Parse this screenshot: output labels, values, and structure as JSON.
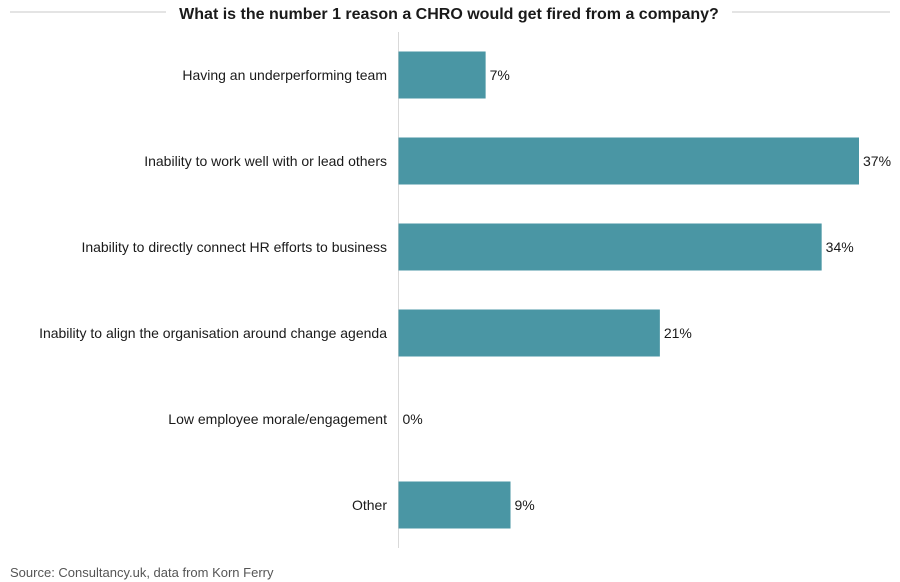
{
  "chart_data": {
    "type": "bar",
    "orientation": "horizontal",
    "title": "What is the number 1 reason a CHRO would get fired from a company?",
    "categories": [
      "Having an underperforming team",
      "Inability to work well with or lead others",
      "Inability to directly connect HR efforts to business",
      "Inability to align the organisation around change agenda",
      "Low employee morale/engagement",
      "Other"
    ],
    "values": [
      7,
      37,
      34,
      21,
      0,
      9
    ],
    "value_labels": [
      "7%",
      "37%",
      "34%",
      "21%",
      "0%",
      "9%"
    ],
    "unit": "%",
    "xlim": [
      0,
      37
    ],
    "grid": false,
    "bar_color": "#4A96A4"
  },
  "source": "Source: Consultancy.uk, data from Korn Ferry"
}
